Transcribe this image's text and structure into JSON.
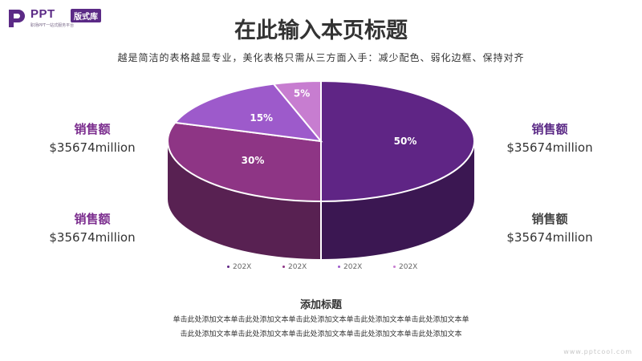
{
  "logo": {
    "brand": "PPT",
    "badge": "版式库",
    "tagline": "职场PPT一站式服务平台"
  },
  "header": {
    "title": "在此输入本页标题",
    "subtitle": "越是简洁的表格越显专业，美化表格只需从三方面入手：减少配色、弱化边框、保持对齐"
  },
  "stats": {
    "top_left": {
      "label": "销售额",
      "value": "$35674million",
      "color": "#7b2d8e"
    },
    "bottom_left": {
      "label": "销售额",
      "value": "$35674million",
      "color": "#7b2d8e"
    },
    "top_right": {
      "label": "销售额",
      "value": "$35674million",
      "color": "#5b2a86"
    },
    "bottom_right": {
      "label": "销售额",
      "value": "$35674million",
      "color": "#444444"
    }
  },
  "chart_data": {
    "type": "pie",
    "style": "3d",
    "title": "",
    "slices": [
      {
        "category": "202X",
        "value": 50,
        "label": "50%",
        "color": "#5f2585"
      },
      {
        "category": "202X",
        "value": 30,
        "label": "30%",
        "color": "#8e3585"
      },
      {
        "category": "202X",
        "value": 15,
        "label": "15%",
        "color": "#9d5acb"
      },
      {
        "category": "202X",
        "value": 5,
        "label": "5%",
        "color": "#c77dd0"
      }
    ],
    "legend": [
      "202X",
      "202X",
      "202X",
      "202X"
    ],
    "legend_position": "bottom"
  },
  "section": {
    "title": "添加标题",
    "lines": [
      "单击此处添加文本单击此处添加文本单击此处添加文本单击此处添加文本单击此处添加文本单",
      "击此处添加文本单击此处添加文本单击此处添加文本单击此处添加文本单击此处添加文本"
    ]
  },
  "watermark": "www.pptcool.com"
}
